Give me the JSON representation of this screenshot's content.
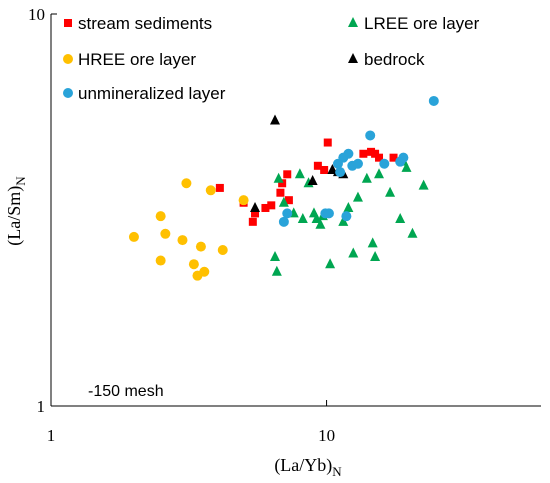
{
  "chart_data": {
    "type": "scatter",
    "title": "",
    "xlabel": "(La/Yb)",
    "xlabel_sub": "N",
    "ylabel": "(La/Sm)",
    "ylabel_sub": "N",
    "xscale": "log",
    "yscale": "log",
    "xlim": [
      1,
      60
    ],
    "ylim": [
      1,
      10
    ],
    "xticks": [
      {
        "value": 1,
        "label": "1"
      },
      {
        "value": 10,
        "label": "10"
      }
    ],
    "yticks": [
      {
        "value": 1,
        "label": "1"
      },
      {
        "value": 10,
        "label": "10"
      }
    ],
    "grid": false,
    "legend_position": "top-left",
    "annotation": "-150 mesh",
    "series": [
      {
        "name": "stream sediments",
        "marker": "square",
        "color": "#ff0000",
        "points": [
          {
            "x": 4.1,
            "y": 3.6
          },
          {
            "x": 5.0,
            "y": 3.3
          },
          {
            "x": 5.5,
            "y": 3.1
          },
          {
            "x": 5.4,
            "y": 2.95
          },
          {
            "x": 6.0,
            "y": 3.2
          },
          {
            "x": 6.3,
            "y": 3.25
          },
          {
            "x": 6.8,
            "y": 3.5
          },
          {
            "x": 6.9,
            "y": 3.7
          },
          {
            "x": 7.2,
            "y": 3.9
          },
          {
            "x": 7.3,
            "y": 3.35
          },
          {
            "x": 9.3,
            "y": 4.1
          },
          {
            "x": 9.8,
            "y": 4.0
          },
          {
            "x": 10.1,
            "y": 4.7
          },
          {
            "x": 13.6,
            "y": 4.4
          },
          {
            "x": 14.5,
            "y": 4.45
          },
          {
            "x": 15.0,
            "y": 4.4
          },
          {
            "x": 15.5,
            "y": 4.3
          },
          {
            "x": 17.5,
            "y": 4.3
          }
        ]
      },
      {
        "name": "LREE ore layer",
        "marker": "triangle",
        "color": "#00a651",
        "points": [
          {
            "x": 6.5,
            "y": 2.4
          },
          {
            "x": 6.6,
            "y": 2.2
          },
          {
            "x": 6.7,
            "y": 3.8
          },
          {
            "x": 7.0,
            "y": 3.3
          },
          {
            "x": 7.6,
            "y": 3.1
          },
          {
            "x": 8.0,
            "y": 3.9
          },
          {
            "x": 8.2,
            "y": 3.0
          },
          {
            "x": 8.6,
            "y": 3.7
          },
          {
            "x": 9.0,
            "y": 3.1
          },
          {
            "x": 9.2,
            "y": 3.0
          },
          {
            "x": 9.5,
            "y": 2.9
          },
          {
            "x": 9.7,
            "y": 3.05
          },
          {
            "x": 10.3,
            "y": 2.3
          },
          {
            "x": 11.5,
            "y": 2.95
          },
          {
            "x": 12.0,
            "y": 3.2
          },
          {
            "x": 12.5,
            "y": 2.45
          },
          {
            "x": 13.0,
            "y": 3.4
          },
          {
            "x": 14.0,
            "y": 3.8
          },
          {
            "x": 14.7,
            "y": 2.6
          },
          {
            "x": 15.0,
            "y": 2.4
          },
          {
            "x": 15.5,
            "y": 3.9
          },
          {
            "x": 17.0,
            "y": 3.5
          },
          {
            "x": 18.5,
            "y": 3.0
          },
          {
            "x": 19.0,
            "y": 4.2
          },
          {
            "x": 19.5,
            "y": 4.05
          },
          {
            "x": 20.5,
            "y": 2.75
          },
          {
            "x": 22.5,
            "y": 3.65
          }
        ]
      },
      {
        "name": "HREE ore layer",
        "marker": "circle",
        "color": "#ffc000",
        "points": [
          {
            "x": 2.0,
            "y": 2.7
          },
          {
            "x": 2.5,
            "y": 3.05
          },
          {
            "x": 2.6,
            "y": 2.75
          },
          {
            "x": 2.5,
            "y": 2.35
          },
          {
            "x": 3.0,
            "y": 2.65
          },
          {
            "x": 3.1,
            "y": 3.7
          },
          {
            "x": 3.3,
            "y": 2.3
          },
          {
            "x": 3.5,
            "y": 2.55
          },
          {
            "x": 3.4,
            "y": 2.15
          },
          {
            "x": 3.6,
            "y": 2.2
          },
          {
            "x": 3.8,
            "y": 3.55
          },
          {
            "x": 4.2,
            "y": 2.5
          },
          {
            "x": 5.0,
            "y": 3.35
          }
        ]
      },
      {
        "name": "bedrock",
        "marker": "triangle",
        "color": "#000000",
        "points": [
          {
            "x": 5.5,
            "y": 3.2
          },
          {
            "x": 6.5,
            "y": 5.35
          },
          {
            "x": 8.9,
            "y": 3.75
          },
          {
            "x": 10.5,
            "y": 4.0
          },
          {
            "x": 11.0,
            "y": 3.95
          },
          {
            "x": 11.5,
            "y": 3.9
          }
        ]
      },
      {
        "name": "unmineralized layer",
        "marker": "circle",
        "color": "#29a3d9",
        "points": [
          {
            "x": 7.0,
            "y": 2.95
          },
          {
            "x": 7.2,
            "y": 3.1
          },
          {
            "x": 9.9,
            "y": 3.1
          },
          {
            "x": 10.2,
            "y": 3.1
          },
          {
            "x": 11.2,
            "y": 3.95
          },
          {
            "x": 11.5,
            "y": 4.3
          },
          {
            "x": 12.0,
            "y": 4.4
          },
          {
            "x": 12.4,
            "y": 4.1
          },
          {
            "x": 11.8,
            "y": 3.05
          },
          {
            "x": 11.0,
            "y": 4.15
          },
          {
            "x": 13.0,
            "y": 4.15
          },
          {
            "x": 14.4,
            "y": 4.9
          },
          {
            "x": 16.2,
            "y": 4.15
          },
          {
            "x": 18.5,
            "y": 4.2
          },
          {
            "x": 19.0,
            "y": 4.3
          },
          {
            "x": 24.5,
            "y": 6.0
          }
        ]
      }
    ]
  }
}
